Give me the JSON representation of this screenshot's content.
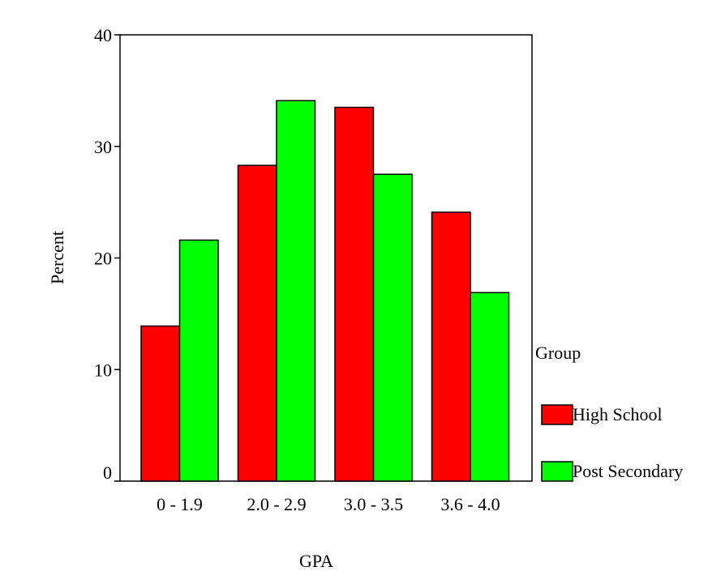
{
  "chart_data": {
    "type": "bar",
    "xlabel": "GPA",
    "ylabel": "Percent",
    "ylim": [
      0,
      40
    ],
    "yticks": [
      0,
      10,
      20,
      30,
      40
    ],
    "grid": false,
    "legend_position": "right",
    "legend_title": "Group",
    "categories": [
      "0 - 1.9",
      "2.0 - 2.9",
      "3.0 - 3.5",
      "3.6 - 4.0"
    ],
    "series": [
      {
        "name": "High School",
        "color": "#ff0000",
        "values": [
          13.9,
          28.3,
          33.5,
          24.1
        ]
      },
      {
        "name": "Post Secondary",
        "color": "#00ff00",
        "values": [
          21.6,
          34.1,
          27.5,
          16.9
        ]
      }
    ]
  }
}
